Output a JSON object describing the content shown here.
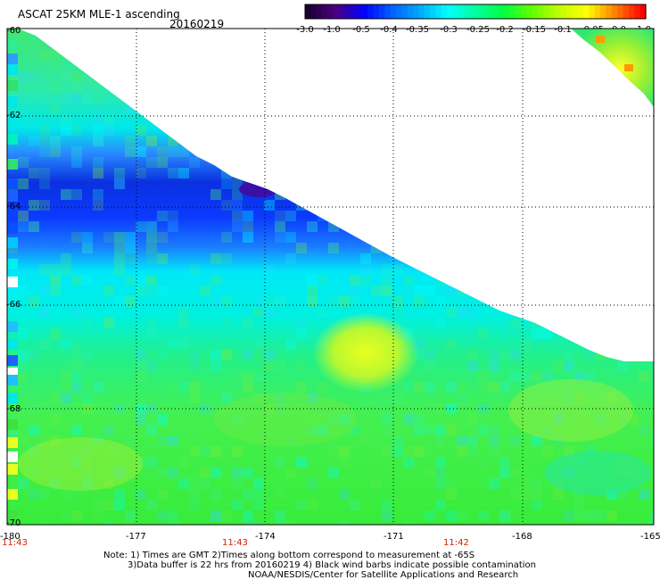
{
  "header": {
    "title": "ASCAT 25KM MLE-1 ascending",
    "date": "20160219"
  },
  "colorbar": {
    "ticks": [
      "-3.0",
      "-1.0",
      "-0.5",
      "-0.4",
      "-0.35",
      "-0.3",
      "-0.25",
      "-0.2",
      "-0.15",
      "-0.1",
      "-0.05",
      "0.0",
      "1.0"
    ],
    "colors": [
      "#1a0033",
      "#4b0082",
      "#0000ff",
      "#0060ff",
      "#00a8ff",
      "#00ffff",
      "#00ffa0",
      "#00ff40",
      "#60ff00",
      "#c0ff00",
      "#ffff00",
      "#ff8000",
      "#ff0000"
    ]
  },
  "axes": {
    "lat_labels": [
      "-60",
      "-62",
      "-64",
      "-66",
      "-68",
      "-70"
    ],
    "lon_labels": [
      "-180",
      "-177",
      "-174",
      "-171",
      "-168",
      "-165"
    ],
    "times": [
      "11:43",
      "11:43",
      "11:42"
    ]
  },
  "notes": [
    "Note: 1) Times are GMT 2)Times along bottom correspond to measurement at -65S",
    "3)Data buffer is 22 hrs from 20160219 4) Black wind barbs indicate possible contamination",
    "NOAA/NESDIS/Center for Satellite Applications and Research"
  ]
}
